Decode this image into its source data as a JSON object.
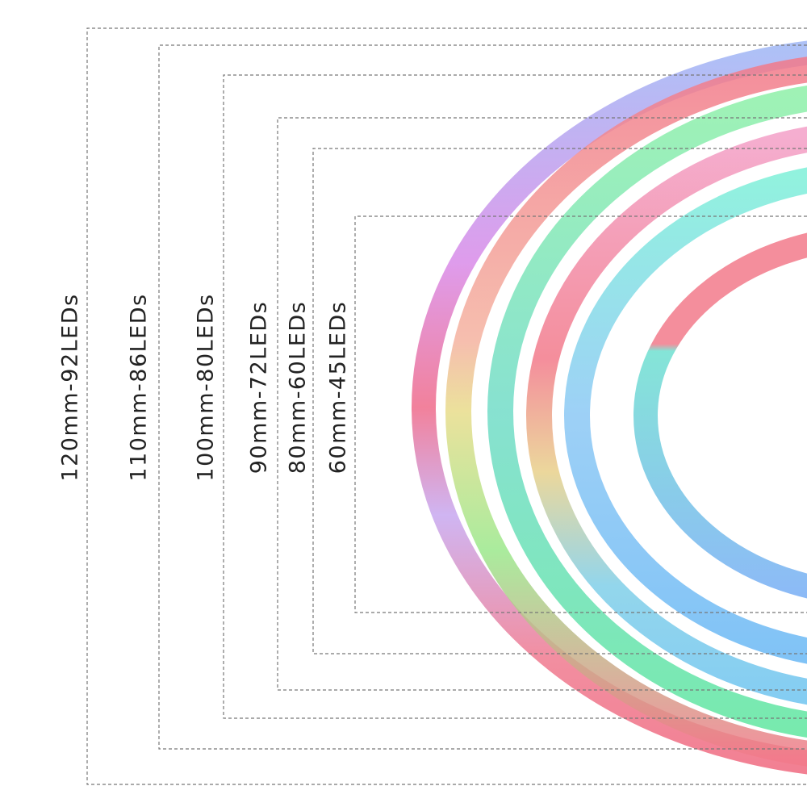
{
  "labels": [
    "120mm-92LEDs",
    "110mm-86LEDs",
    "100mm-80LEDs",
    "90mm-72LEDs",
    "80mm-60LEDs",
    "60mm-45LEDs"
  ]
}
